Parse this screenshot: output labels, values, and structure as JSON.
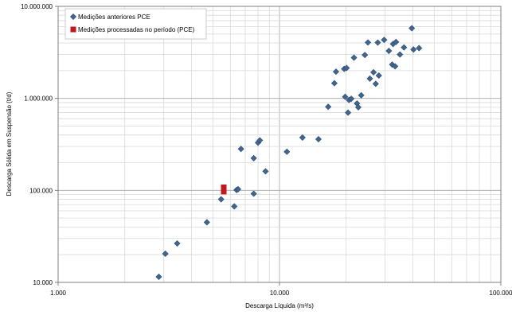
{
  "chart_data": {
    "type": "scatter",
    "title": "",
    "xlabel": "Descarga Líquida (m³/s)",
    "ylabel": "Descarga Sólida em Suspensão (t/d)",
    "x_scale": "log",
    "y_scale": "log",
    "xlim": [
      1000,
      100000
    ],
    "ylim": [
      10000,
      10000000
    ],
    "x_tick_labels": [
      "1.000",
      "10.000",
      "100.000"
    ],
    "y_tick_labels": [
      "10.000",
      "100.000",
      "1.000.000",
      "10.000.000"
    ],
    "grid": true,
    "legend_position": "top-left",
    "series": [
      {
        "name": "Medições anteriores PCE",
        "color": "#41668f",
        "marker": "diamond",
        "points": [
          [
            2850,
            11500
          ],
          [
            3050,
            20500
          ],
          [
            3450,
            26500
          ],
          [
            4700,
            45000
          ],
          [
            5450,
            80000
          ],
          [
            6250,
            67000
          ],
          [
            6400,
            101000
          ],
          [
            6500,
            103000
          ],
          [
            6700,
            282000
          ],
          [
            7650,
            92000
          ],
          [
            7650,
            224000
          ],
          [
            8000,
            330000
          ],
          [
            8150,
            350000
          ],
          [
            8650,
            161000
          ],
          [
            10800,
            263000
          ],
          [
            12700,
            375000
          ],
          [
            15000,
            360000
          ],
          [
            16600,
            810000
          ],
          [
            17700,
            1460000
          ],
          [
            18000,
            1950000
          ],
          [
            19600,
            2090000
          ],
          [
            19800,
            1040000
          ],
          [
            20100,
            2140000
          ],
          [
            20400,
            700000
          ],
          [
            20600,
            960000
          ],
          [
            21100,
            990000
          ],
          [
            21700,
            2770000
          ],
          [
            22400,
            880000
          ],
          [
            22700,
            800000
          ],
          [
            23400,
            1080000
          ],
          [
            24300,
            2960000
          ],
          [
            25100,
            4050000
          ],
          [
            25600,
            1640000
          ],
          [
            26600,
            1920000
          ],
          [
            27200,
            1440000
          ],
          [
            27800,
            4040000
          ],
          [
            28100,
            1770000
          ],
          [
            29700,
            4320000
          ],
          [
            31200,
            3280000
          ],
          [
            32300,
            2330000
          ],
          [
            32600,
            3900000
          ],
          [
            33300,
            2230000
          ],
          [
            33600,
            4100000
          ],
          [
            35000,
            3000000
          ],
          [
            36500,
            3580000
          ],
          [
            39600,
            5780000
          ],
          [
            40300,
            3400000
          ],
          [
            42700,
            3520000
          ]
        ]
      },
      {
        "name": "Medições processadas no período (PCE)",
        "color": "#c0181e",
        "marker": "square",
        "points": [
          [
            5600,
            97000
          ],
          [
            5600,
            108000
          ]
        ]
      }
    ]
  }
}
